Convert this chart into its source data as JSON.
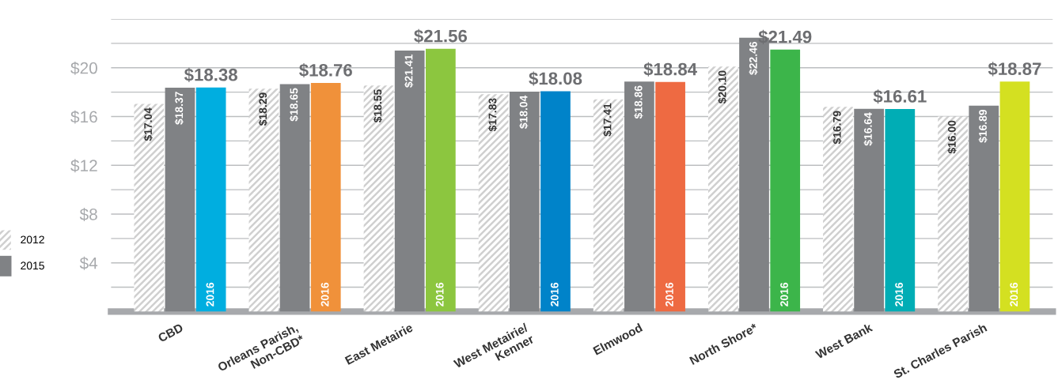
{
  "chart_data": {
    "type": "bar",
    "categories": [
      "CBD",
      "Orleans Parish,\nNon-CBD*",
      "East Metairie",
      "West Metairie/\nKenner",
      "Elmwood",
      "North Shore*",
      "West Bank",
      "St. Charles Parish"
    ],
    "series": [
      {
        "name": "2012",
        "color": "#cfcfcf",
        "values": [
          17.04,
          18.29,
          18.55,
          17.83,
          17.41,
          20.1,
          16.79,
          16.0
        ],
        "value_labels": [
          "$17.04",
          "$18.29",
          "$18.55",
          "$17.83",
          "$17.41",
          "$20.10",
          "$16.79",
          "$16.00"
        ]
      },
      {
        "name": "2015",
        "color": "#808285",
        "values": [
          18.37,
          18.65,
          21.41,
          18.04,
          18.86,
          22.46,
          16.64,
          16.89
        ],
        "value_labels": [
          "$18.37",
          "$18.65",
          "$21.41",
          "$18.04",
          "$18.86",
          "$22.46",
          "$16.64",
          "$16.89"
        ]
      },
      {
        "name": "2016",
        "colors": [
          "#00aee0",
          "#f0913a",
          "#8cc63f",
          "#0083c9",
          "#ee6a42",
          "#3cb54a",
          "#00adb5",
          "#d4e021"
        ],
        "values": [
          18.38,
          18.76,
          21.56,
          18.08,
          18.84,
          21.49,
          16.61,
          18.87
        ],
        "value_labels": [
          "$18.38",
          "$18.76",
          "$21.56",
          "$18.08",
          "$18.84",
          "$21.49",
          "$16.61",
          "$18.87"
        ]
      }
    ],
    "ylim": [
      0,
      24
    ],
    "yticks": [
      {
        "value": 2,
        "label": null
      },
      {
        "value": 4,
        "label": "$4"
      },
      {
        "value": 6,
        "label": null
      },
      {
        "value": 8,
        "label": "$8"
      },
      {
        "value": 10,
        "label": null
      },
      {
        "value": 12,
        "label": "$12"
      },
      {
        "value": 14,
        "label": null
      },
      {
        "value": 16,
        "label": "$16"
      },
      {
        "value": 18,
        "label": null
      },
      {
        "value": 20,
        "label": "$20"
      },
      {
        "value": 22,
        "label": null
      },
      {
        "value": 24,
        "label": null
      }
    ],
    "grid": "y",
    "legend": "left"
  }
}
